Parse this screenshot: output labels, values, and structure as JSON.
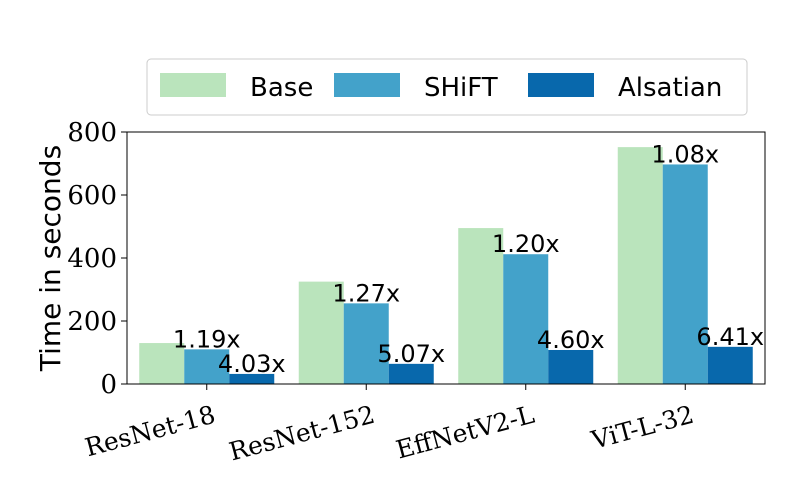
{
  "chart_data": {
    "type": "bar",
    "categories": [
      "ResNet-18",
      "ResNet-152",
      "EffNetV2-L",
      "ViT-L-32"
    ],
    "series": [
      {
        "name": "Base",
        "color": "#bae4bc",
        "values": [
          130,
          325,
          495,
          752
        ]
      },
      {
        "name": "SHiFT",
        "color": "#43a2ca",
        "values": [
          110,
          256,
          412,
          697
        ]
      },
      {
        "name": "Alsatian",
        "color": "#0868ac",
        "values": [
          32,
          64,
          108,
          118
        ]
      }
    ],
    "data_labels": [
      {
        "series": "SHiFT",
        "category": "ResNet-18",
        "text": "1.19x"
      },
      {
        "series": "Alsatian",
        "category": "ResNet-18",
        "text": "4.03x"
      },
      {
        "series": "SHiFT",
        "category": "ResNet-152",
        "text": "1.27x"
      },
      {
        "series": "Alsatian",
        "category": "ResNet-152",
        "text": "5.07x"
      },
      {
        "series": "SHiFT",
        "category": "EffNetV2-L",
        "text": "1.20x"
      },
      {
        "series": "Alsatian",
        "category": "EffNetV2-L",
        "text": "4.60x"
      },
      {
        "series": "SHiFT",
        "category": "ViT-L-32",
        "text": "1.08x"
      },
      {
        "series": "Alsatian",
        "category": "ViT-L-32",
        "text": "6.41x"
      }
    ],
    "title": "",
    "xlabel": "",
    "ylabel": "Time in seconds",
    "ylim": [
      0,
      800
    ],
    "yticks": [
      0,
      200,
      400,
      600,
      800
    ],
    "grid": false,
    "legend": "top"
  }
}
